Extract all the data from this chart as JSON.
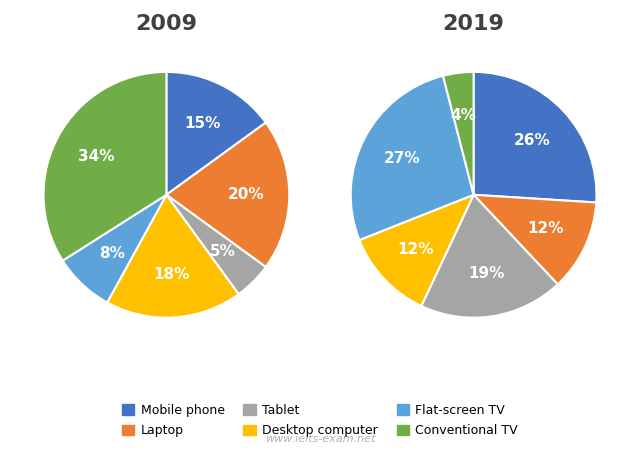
{
  "chart_2009": {
    "title": "2009",
    "labels": [
      "Mobile phone",
      "Laptop",
      "Tablet",
      "Desktop computer",
      "Flat-screen TV",
      "Conventional TV"
    ],
    "values": [
      15,
      20,
      5,
      18,
      8,
      34
    ],
    "colors": [
      "#4472C4",
      "#ED7D31",
      "#A5A5A5",
      "#FFC000",
      "#5BA3D9",
      "#70AD47"
    ],
    "startangle": 90
  },
  "chart_2019": {
    "title": "2019",
    "labels": [
      "Mobile phone",
      "Laptop",
      "Tablet",
      "Desktop computer",
      "Flat-screen TV",
      "Conventional TV"
    ],
    "values": [
      26,
      12,
      19,
      12,
      27,
      4
    ],
    "colors": [
      "#4472C4",
      "#ED7D31",
      "#A5A5A5",
      "#FFC000",
      "#5BA3D9",
      "#70AD47"
    ],
    "startangle": 90
  },
  "legend_labels": [
    "Mobile phone",
    "Laptop",
    "Tablet",
    "Desktop computer",
    "Flat-screen TV",
    "Conventional TV"
  ],
  "legend_colors": [
    "#4472C4",
    "#ED7D31",
    "#A5A5A5",
    "#FFC000",
    "#5BA3D9",
    "#70AD47"
  ],
  "watermark": "www.ielts-exam.net",
  "title_fontsize": 16,
  "pct_fontsize": 11,
  "legend_fontsize": 9,
  "bg_color": "#FFFFFF"
}
